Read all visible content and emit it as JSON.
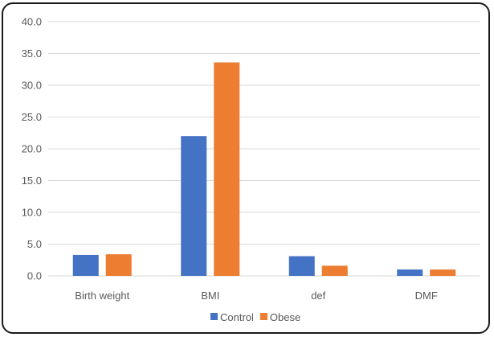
{
  "chart_data": {
    "type": "bar",
    "categories": [
      "Birth weight",
      "BMI",
      "def",
      "DMF"
    ],
    "series": [
      {
        "name": "Control",
        "values": [
          3.3,
          22.0,
          3.1,
          1.0
        ],
        "color": "#4472C4"
      },
      {
        "name": "Obese",
        "values": [
          3.4,
          33.6,
          1.6,
          1.0
        ],
        "color": "#ED7D31"
      }
    ],
    "ylim": [
      0,
      40
    ],
    "yticks": [
      "0.0",
      "5.0",
      "10.0",
      "15.0",
      "20.0",
      "25.0",
      "30.0",
      "35.0",
      "40.0"
    ],
    "grid": true,
    "gridColor": "#d9d9d9",
    "legend": "bottom",
    "title": "",
    "xlabel": "",
    "ylabel": ""
  }
}
